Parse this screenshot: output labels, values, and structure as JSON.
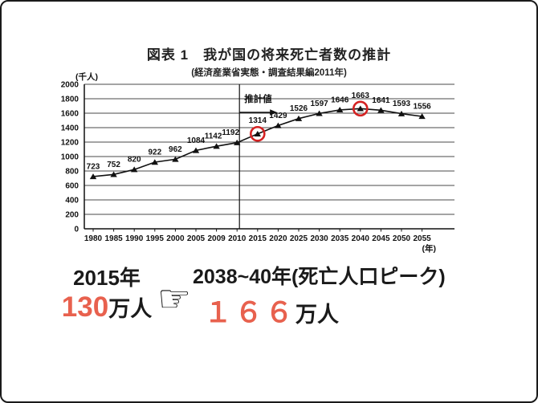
{
  "colors": {
    "accent_orange": "#e8614e",
    "highlight_red": "#d42222",
    "line_black": "#111111"
  },
  "chart_data": {
    "type": "line",
    "title": "図表 1　我が国の将来死亡者数の推計",
    "subtitle": "(経済産業省実態・調査結果編2011年)",
    "y_unit": "(千人)",
    "x_unit": "(年)",
    "estimate_label": "推計値",
    "categories": [
      "1980",
      "1985",
      "1990",
      "1995",
      "2000",
      "2005",
      "2009",
      "2010",
      "2015",
      "2020",
      "2025",
      "2030",
      "2035",
      "2040",
      "2045",
      "2050",
      "2055"
    ],
    "values": [
      723,
      752,
      820,
      922,
      962,
      1084,
      1142,
      1192,
      1314,
      1429,
      1526,
      1597,
      1646,
      1663,
      1641,
      1593,
      1556
    ],
    "ylim": [
      0,
      2000
    ],
    "ytick_step": 200,
    "grid": true,
    "legend": "none",
    "marker": "triangle",
    "estimate_divider_at": "2010",
    "circled_categories": [
      "2015",
      "2040"
    ]
  },
  "callout": {
    "left_year": "2015年",
    "left_value": "130",
    "left_unit": "万人",
    "hand_icon": "☞",
    "right_year": "2038~40年(死亡人口ピーク)",
    "right_value": "１６６",
    "right_unit": "万人"
  }
}
